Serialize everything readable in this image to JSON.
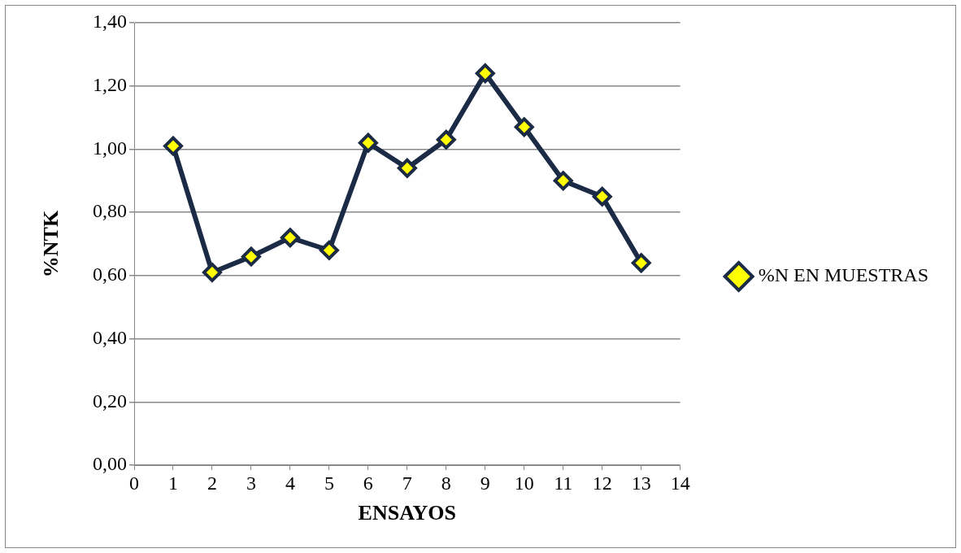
{
  "chart_data": {
    "type": "line",
    "xlabel": "ENSAYOS",
    "ylabel": "%NTK",
    "x": [
      1,
      2,
      3,
      4,
      5,
      6,
      7,
      8,
      9,
      10,
      11,
      12,
      13
    ],
    "series": [
      {
        "name": "%N EN MUESTRAS",
        "color": "#1b2a45",
        "values": [
          1.01,
          0.61,
          0.66,
          0.72,
          0.68,
          1.02,
          0.94,
          1.03,
          1.24,
          1.07,
          0.9,
          0.85,
          0.64
        ]
      }
    ],
    "xlim": [
      0,
      14
    ],
    "xticks": [
      0,
      1,
      2,
      3,
      4,
      5,
      6,
      7,
      8,
      9,
      10,
      11,
      12,
      13,
      14
    ],
    "ylim": [
      0,
      1.4
    ],
    "yticks": [
      {
        "value": 0,
        "label": "0,00"
      },
      {
        "value": 0.2,
        "label": "0,20"
      },
      {
        "value": 0.4,
        "label": "0,40"
      },
      {
        "value": 0.6,
        "label": "0,60"
      },
      {
        "value": 0.8,
        "label": "0,80"
      },
      {
        "value": 1.0,
        "label": "1,00"
      },
      {
        "value": 1.2,
        "label": "1,20"
      },
      {
        "value": 1.4,
        "label": "1,40"
      }
    ],
    "grid": "y",
    "legend": "right",
    "marker": "diamond",
    "line_style": "solid"
  }
}
